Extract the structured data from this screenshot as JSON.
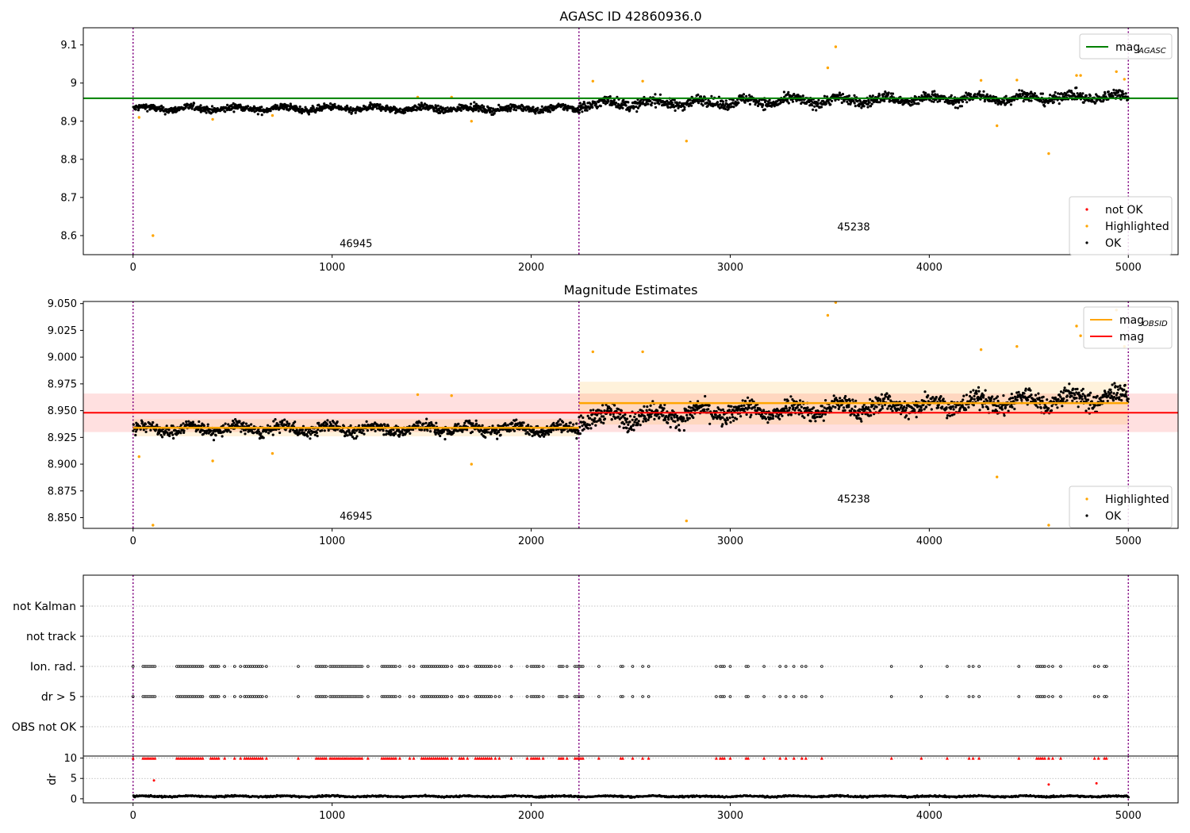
{
  "chart_data": [
    {
      "type": "scatter",
      "title": "AGASC ID 42860936.0",
      "xlim": [
        -250,
        5250
      ],
      "ylim": [
        8.55,
        9.145
      ],
      "xticks": [
        0,
        1000,
        2000,
        3000,
        4000,
        5000
      ],
      "yticks": [
        8.6,
        8.7,
        8.8,
        8.9,
        9.0,
        9.1
      ],
      "grid": false,
      "vlines": [
        0,
        2240,
        5000
      ],
      "hline": {
        "y": 8.96,
        "color": "#008000",
        "x_range": [
          -250,
          5250
        ]
      },
      "obsid_annotations": [
        {
          "text": "46945",
          "x": 1120,
          "y": 8.57
        },
        {
          "text": "45238",
          "x": 3620,
          "y": 8.613
        }
      ],
      "legends": [
        {
          "placement": "upper right",
          "entries": [
            {
              "kind": "line",
              "color": "#008000",
              "label": "mag",
              "sub": "AGASC"
            }
          ]
        },
        {
          "placement": "lower right",
          "entries": [
            {
              "kind": "dot",
              "color": "#ff0000",
              "label": "not OK"
            },
            {
              "kind": "dot",
              "color": "#ffa500",
              "label": "Highlighted"
            },
            {
              "kind": "dot",
              "color": "#000000",
              "label": "OK"
            }
          ]
        }
      ],
      "series": [
        {
          "name": "OK",
          "color": "#000000",
          "segments": [
            {
              "x": [
                0,
                2240
              ],
              "mean": 8.933,
              "spread": 0.014
            },
            {
              "x": [
                2240,
                5000
              ],
              "mean": 8.955,
              "spread": 0.022,
              "trend": 0.02
            }
          ]
        },
        {
          "name": "Highlighted",
          "color": "#ffa500",
          "points": [
            [
              30,
              8.91
            ],
            [
              100,
              8.6
            ],
            [
              400,
              8.905
            ],
            [
              700,
              8.915
            ],
            [
              1430,
              8.963
            ],
            [
              1600,
              8.963
            ],
            [
              1700,
              8.9
            ],
            [
              2310,
              9.005
            ],
            [
              2560,
              9.005
            ],
            [
              2780,
              8.848
            ],
            [
              3490,
              9.04
            ],
            [
              3530,
              9.095
            ],
            [
              4260,
              9.007
            ],
            [
              4340,
              8.888
            ],
            [
              4440,
              9.008
            ],
            [
              4600,
              8.815
            ],
            [
              4740,
              9.02
            ],
            [
              4760,
              9.02
            ],
            [
              4940,
              9.03
            ],
            [
              4980,
              9.01
            ]
          ]
        }
      ]
    },
    {
      "type": "scatter",
      "title": "Magnitude Estimates",
      "xlim": [
        -250,
        5250
      ],
      "ylim": [
        8.84,
        9.052
      ],
      "xticks": [
        0,
        1000,
        2000,
        3000,
        4000,
        5000
      ],
      "yticks": [
        8.85,
        8.875,
        8.9,
        8.925,
        8.95,
        8.975,
        9.0,
        9.025,
        9.05
      ],
      "ytick_labels": [
        "8.850",
        "8.875",
        "8.900",
        "8.925",
        "8.950",
        "8.975",
        "9.000",
        "9.025",
        "9.050"
      ],
      "grid": false,
      "vlines": [
        0,
        2240,
        5000
      ],
      "mag": {
        "value": 8.948,
        "band": [
          8.93,
          8.966
        ],
        "color": "#ff0000",
        "x_range": [
          -250,
          5250
        ]
      },
      "obsid_mags": [
        {
          "x": [
            0,
            2240
          ],
          "value": 8.934,
          "band": [
            8.926,
            8.942
          ]
        },
        {
          "x": [
            2240,
            5000
          ],
          "value": 8.957,
          "band": [
            8.937,
            8.977
          ]
        }
      ],
      "obsid_annotations": [
        {
          "text": "46945",
          "x": 1120,
          "y": 8.848
        },
        {
          "text": "45238",
          "x": 3620,
          "y": 8.864
        }
      ],
      "legends": [
        {
          "placement": "upper right",
          "entries": [
            {
              "kind": "line",
              "color": "#ffa500",
              "label": "mag",
              "sub": "OBSID"
            },
            {
              "kind": "line",
              "color": "#ff0000",
              "label": "mag"
            }
          ]
        },
        {
          "placement": "lower right",
          "entries": [
            {
              "kind": "dot",
              "color": "#ffa500",
              "label": "Highlighted"
            },
            {
              "kind": "dot",
              "color": "#000000",
              "label": "OK"
            }
          ]
        }
      ],
      "series": [
        {
          "name": "OK",
          "color": "#000000",
          "segments": [
            {
              "x": [
                0,
                2240
              ],
              "mean": 8.933,
              "spread": 0.009
            },
            {
              "x": [
                2240,
                5000
              ],
              "mean": 8.953,
              "spread": 0.014,
              "trend": 0.02
            }
          ]
        },
        {
          "name": "Highlighted",
          "color": "#ffa500",
          "points": [
            [
              30,
              8.907
            ],
            [
              100,
              8.843
            ],
            [
              400,
              8.903
            ],
            [
              700,
              8.91
            ],
            [
              1430,
              8.965
            ],
            [
              1600,
              8.964
            ],
            [
              1700,
              8.9
            ],
            [
              2310,
              9.005
            ],
            [
              2560,
              9.005
            ],
            [
              2780,
              8.847
            ],
            [
              3490,
              9.039
            ],
            [
              3530,
              9.051
            ],
            [
              4260,
              9.007
            ],
            [
              4340,
              8.888
            ],
            [
              4440,
              9.01
            ],
            [
              4600,
              8.843
            ],
            [
              4740,
              9.029
            ],
            [
              4760,
              9.02
            ],
            [
              4940,
              9.044
            ],
            [
              4980,
              9.01
            ]
          ]
        }
      ]
    },
    {
      "type": "scatter",
      "xlim": [
        -250,
        5250
      ],
      "xticks": [
        0,
        1000,
        2000,
        3000,
        4000,
        5000
      ],
      "categories": [
        "OBS not OK",
        "dr > 5",
        "Ion. rad.",
        "not track",
        "not Kalman"
      ],
      "grid": "horizontal dotted",
      "vlines": [
        0,
        2240,
        5000
      ],
      "flag_x": [
        0,
        50,
        60,
        70,
        80,
        90,
        100,
        110,
        220,
        230,
        240,
        250,
        260,
        270,
        280,
        290,
        300,
        310,
        320,
        330,
        340,
        350,
        390,
        400,
        410,
        420,
        430,
        460,
        510,
        540,
        560,
        570,
        580,
        590,
        600,
        610,
        620,
        630,
        640,
        650,
        670,
        830,
        920,
        930,
        940,
        950,
        960,
        970,
        990,
        1000,
        1010,
        1020,
        1030,
        1040,
        1050,
        1060,
        1070,
        1080,
        1090,
        1100,
        1110,
        1120,
        1130,
        1140,
        1150,
        1180,
        1250,
        1260,
        1270,
        1280,
        1290,
        1300,
        1310,
        1320,
        1340,
        1390,
        1410,
        1450,
        1460,
        1470,
        1480,
        1490,
        1500,
        1510,
        1520,
        1530,
        1540,
        1550,
        1560,
        1570,
        1580,
        1600,
        1640,
        1650,
        1660,
        1680,
        1720,
        1730,
        1740,
        1750,
        1760,
        1770,
        1780,
        1790,
        1800,
        1820,
        1840,
        1900,
        1980,
        2000,
        2010,
        2020,
        2030,
        2040,
        2060,
        2140,
        2150,
        2160,
        2180,
        2220,
        2230,
        2240,
        2250,
        2260,
        2340,
        2450,
        2460,
        2510,
        2560,
        2590,
        2930,
        2950,
        2960,
        2970,
        3000,
        3080,
        3090,
        3170,
        3250,
        3280,
        3320,
        3360,
        3380,
        3460,
        3810,
        3960,
        4090,
        4200,
        4220,
        4250,
        4450,
        4540,
        4550,
        4560,
        4570,
        4580,
        4600,
        4620,
        4660,
        4830,
        4850,
        4880,
        4890
      ]
    },
    {
      "type": "scatter",
      "ylabel": "dr",
      "xlim": [
        -250,
        5250
      ],
      "ylim": [
        -1,
        10.5
      ],
      "xticks": [
        0,
        1000,
        2000,
        3000,
        4000,
        5000
      ],
      "yticks": [
        0,
        5,
        10
      ],
      "grid": "horizontal dotted",
      "vlines": [
        0,
        2240,
        5000
      ],
      "series": [
        {
          "name": "OK",
          "color": "#000000",
          "segments": [
            {
              "x": [
                0,
                5000
              ],
              "mean": 0.6,
              "spread": 0.3
            }
          ]
        },
        {
          "name": "not OK",
          "color": "#ff0000",
          "points": [
            [
              105,
              4.5
            ],
            [
              4600,
              3.5
            ],
            [
              4840,
              3.8
            ]
          ],
          "clipped_at": 10
        }
      ]
    }
  ]
}
